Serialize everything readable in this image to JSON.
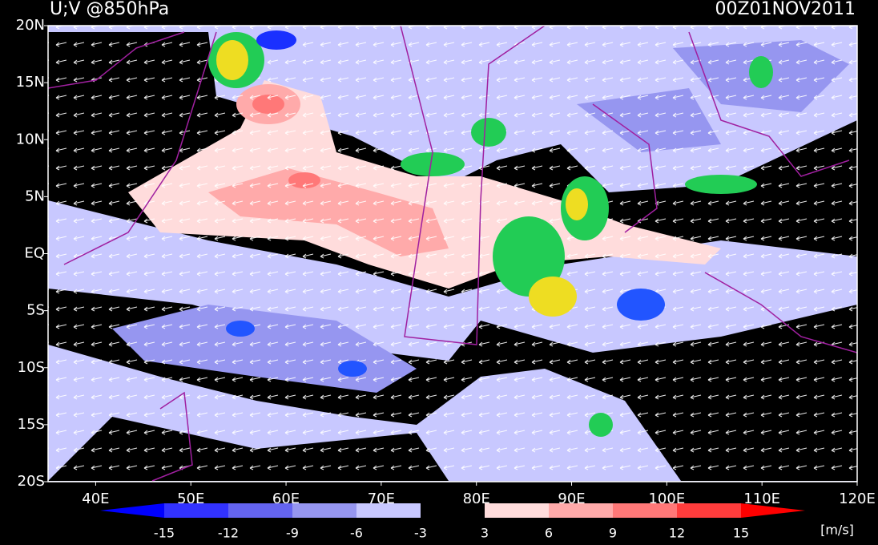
{
  "title": "U;V @850hPa",
  "time": "00Z01NOV2011",
  "map": {
    "lonlim": [
      35,
      120
    ],
    "latlim": [
      -20,
      20
    ],
    "lonticks": [
      {
        "value": 40,
        "label": "40E"
      },
      {
        "value": 50,
        "label": "50E"
      },
      {
        "value": 60,
        "label": "60E"
      },
      {
        "value": 70,
        "label": "70E"
      },
      {
        "value": 80,
        "label": "80E"
      },
      {
        "value": 90,
        "label": "90E"
      },
      {
        "value": 100,
        "label": "100E"
      },
      {
        "value": 110,
        "label": "110E"
      },
      {
        "value": 120,
        "label": "120E"
      }
    ],
    "latticks": [
      {
        "value": 20,
        "label": "20N"
      },
      {
        "value": 15,
        "label": "15N"
      },
      {
        "value": 10,
        "label": "10N"
      },
      {
        "value": 5,
        "label": "5N"
      },
      {
        "value": 0,
        "label": "EQ"
      },
      {
        "value": -5,
        "label": "5S"
      },
      {
        "value": -10,
        "label": "10S"
      },
      {
        "value": -15,
        "label": "15S"
      },
      {
        "value": -20,
        "label": "20S"
      }
    ]
  },
  "colorbar": {
    "levels": [
      -15,
      -12,
      -9,
      -6,
      -3,
      3,
      6,
      9,
      12,
      15
    ],
    "colors": [
      "#0000ff",
      "#3232ff",
      "#6464f0",
      "#9696f0",
      "#c8c8ff",
      "#000000",
      "#ffdcdc",
      "#ffaaaa",
      "#ff7878",
      "#ff3c3c",
      "#ff0000"
    ],
    "unit": "[m/s]"
  }
}
